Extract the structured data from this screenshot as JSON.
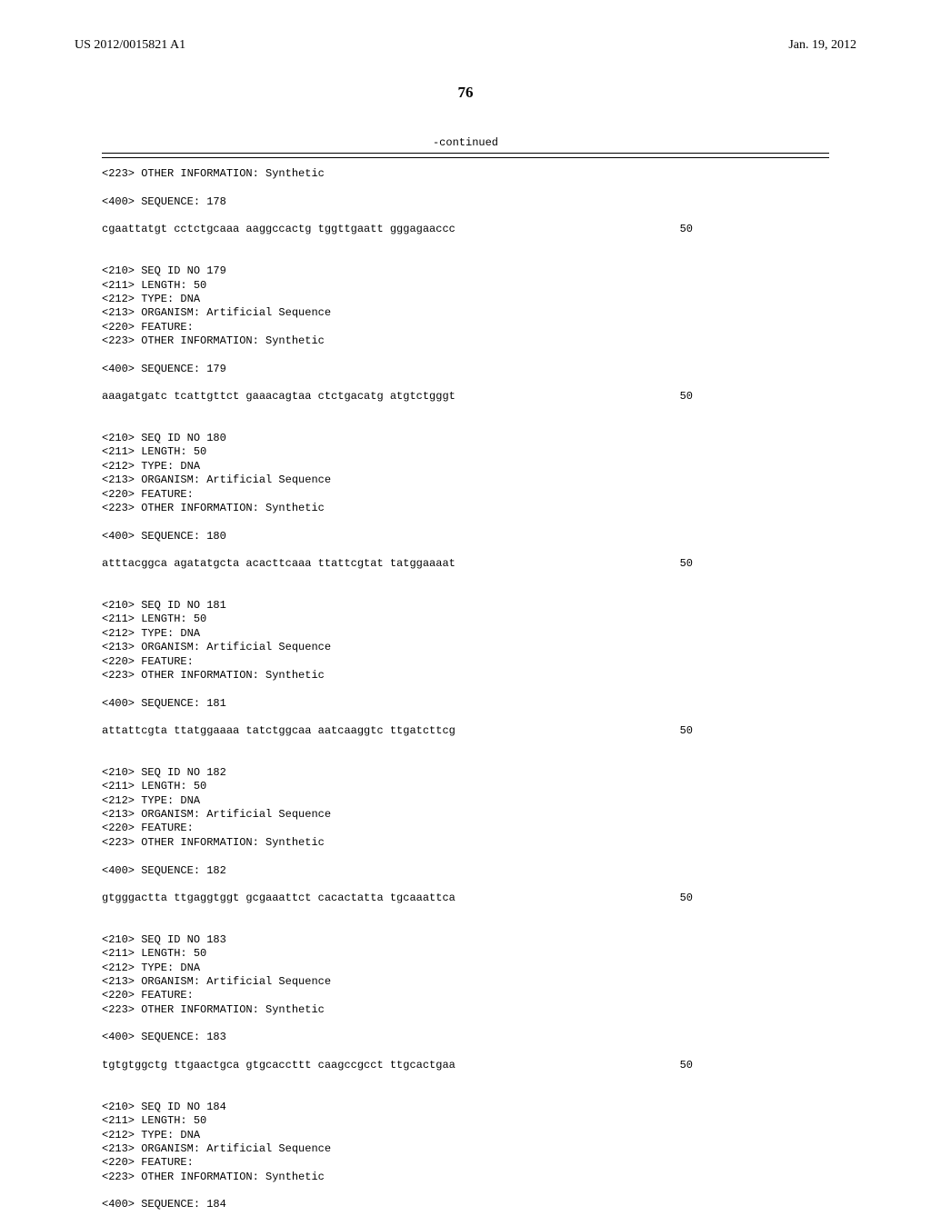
{
  "header": {
    "publication_number": "US 2012/0015821 A1",
    "publication_date": "Jan. 19, 2012"
  },
  "page_number": "76",
  "continued_label": "-continued",
  "sequences": [
    {
      "pre_lines": [
        "<223> OTHER INFORMATION: Synthetic"
      ],
      "sequence_header": "<400> SEQUENCE: 178",
      "sequence_text": "cgaattatgt cctctgcaaa aaggccactg tggttgaatt gggagaaccc",
      "sequence_pos": "50"
    },
    {
      "lines": [
        "<210> SEQ ID NO 179",
        "<211> LENGTH: 50",
        "<212> TYPE: DNA",
        "<213> ORGANISM: Artificial Sequence",
        "<220> FEATURE:",
        "<223> OTHER INFORMATION: Synthetic"
      ],
      "sequence_header": "<400> SEQUENCE: 179",
      "sequence_text": "aaagatgatc tcattgttct gaaacagtaa ctctgacatg atgtctgggt",
      "sequence_pos": "50"
    },
    {
      "lines": [
        "<210> SEQ ID NO 180",
        "<211> LENGTH: 50",
        "<212> TYPE: DNA",
        "<213> ORGANISM: Artificial Sequence",
        "<220> FEATURE:",
        "<223> OTHER INFORMATION: Synthetic"
      ],
      "sequence_header": "<400> SEQUENCE: 180",
      "sequence_text": "atttacggca agatatgcta acacttcaaa ttattcgtat tatggaaaat",
      "sequence_pos": "50"
    },
    {
      "lines": [
        "<210> SEQ ID NO 181",
        "<211> LENGTH: 50",
        "<212> TYPE: DNA",
        "<213> ORGANISM: Artificial Sequence",
        "<220> FEATURE:",
        "<223> OTHER INFORMATION: Synthetic"
      ],
      "sequence_header": "<400> SEQUENCE: 181",
      "sequence_text": "attattcgta ttatggaaaa tatctggcaa aatcaaggtc ttgatcttcg",
      "sequence_pos": "50"
    },
    {
      "lines": [
        "<210> SEQ ID NO 182",
        "<211> LENGTH: 50",
        "<212> TYPE: DNA",
        "<213> ORGANISM: Artificial Sequence",
        "<220> FEATURE:",
        "<223> OTHER INFORMATION: Synthetic"
      ],
      "sequence_header": "<400> SEQUENCE: 182",
      "sequence_text": "gtgggactta ttgaggtggt gcgaaattct cacactatta tgcaaattca",
      "sequence_pos": "50"
    },
    {
      "lines": [
        "<210> SEQ ID NO 183",
        "<211> LENGTH: 50",
        "<212> TYPE: DNA",
        "<213> ORGANISM: Artificial Sequence",
        "<220> FEATURE:",
        "<223> OTHER INFORMATION: Synthetic"
      ],
      "sequence_header": "<400> SEQUENCE: 183",
      "sequence_text": "tgtgtggctg ttgaactgca gtgcaccttt caagccgcct ttgcactgaa",
      "sequence_pos": "50"
    },
    {
      "lines": [
        "<210> SEQ ID NO 184",
        "<211> LENGTH: 50",
        "<212> TYPE: DNA",
        "<213> ORGANISM: Artificial Sequence",
        "<220> FEATURE:",
        "<223> OTHER INFORMATION: Synthetic"
      ],
      "sequence_header": "<400> SEQUENCE: 184",
      "sequence_text": "",
      "sequence_pos": ""
    }
  ]
}
